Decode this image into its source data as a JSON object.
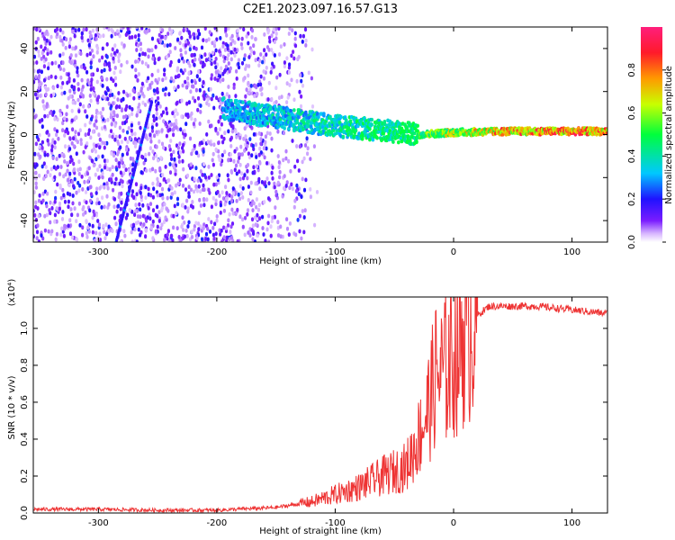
{
  "title": "C2E1.2023.097.16.57.G13",
  "chart_data": [
    {
      "type": "heatmap",
      "title": "C2E1.2023.097.16.57.G13",
      "xlabel": "Height of straight line (km)",
      "ylabel": "Frequency (Hz)",
      "xlim": [
        -355,
        130
      ],
      "ylim": [
        -50,
        50
      ],
      "x_ticks": [
        "-300",
        "-200",
        "-100",
        "0",
        "100"
      ],
      "y_ticks": [
        "-40",
        "-20",
        "0",
        "20",
        "40"
      ],
      "colorbar": {
        "label": "Normalized spectral amplitude",
        "range": [
          0.0,
          1.0
        ],
        "ticks": [
          "0.0",
          "0.2",
          "0.4",
          "0.6",
          "0.8"
        ],
        "colors": [
          "#ffffff",
          "#d7b6ff",
          "#7a1cff",
          "#1f12ff",
          "#00c8ff",
          "#00ff3c",
          "#c8ff00",
          "#ff9a00",
          "#ff1a2a",
          "#ff1e7c"
        ]
      },
      "features": {
        "noise_band_x": [
          -355,
          -115
        ],
        "diagonal_streak": {
          "x": [
            -285,
            -255
          ],
          "y": [
            -50,
            15
          ]
        },
        "spectral_line": [
          {
            "x": -195,
            "y": 12,
            "amp": 0.35
          },
          {
            "x": -150,
            "y": 8,
            "amp": 0.4
          },
          {
            "x": -100,
            "y": 4,
            "amp": 0.45
          },
          {
            "x": -60,
            "y": 2,
            "amp": 0.5
          },
          {
            "x": -30,
            "y": 0,
            "amp": 0.6
          },
          {
            "x": 0,
            "y": 1,
            "amp": 0.7
          },
          {
            "x": 50,
            "y": 1.5,
            "amp": 0.85
          },
          {
            "x": 100,
            "y": 1.5,
            "amp": 0.9
          },
          {
            "x": 130,
            "y": 1.5,
            "amp": 0.8
          }
        ]
      }
    },
    {
      "type": "line",
      "xlabel": "Height of straight line (km)",
      "ylabel": "SNR (10 * v/v)",
      "y_multiplier": "(x10⁴)",
      "xlim": [
        -355,
        130
      ],
      "ylim": [
        0,
        1.17
      ],
      "x_ticks": [
        "-300",
        "-200",
        "-100",
        "0",
        "100"
      ],
      "y_ticks": [
        "0.0",
        "0.2",
        "0.4",
        "0.6",
        "0.8",
        "1.0"
      ],
      "color": "#ee3333",
      "series": [
        {
          "x": [
            -355,
            -300,
            -250,
            -200,
            -150,
            -120,
            -100,
            -80,
            -60,
            -40,
            -30,
            -20,
            -15,
            -10,
            0,
            10,
            20,
            30,
            50,
            70,
            100,
            130
          ],
          "y": [
            0.02,
            0.02,
            0.015,
            0.015,
            0.03,
            0.06,
            0.1,
            0.14,
            0.2,
            0.25,
            0.4,
            0.6,
            0.75,
            0.75,
            0.85,
            1.0,
            1.07,
            1.12,
            1.12,
            1.12,
            1.1,
            1.08
          ]
        }
      ]
    }
  ]
}
